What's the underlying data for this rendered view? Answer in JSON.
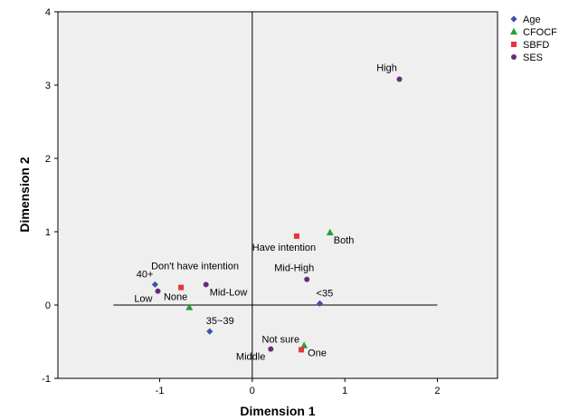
{
  "chart_data": {
    "type": "scatter",
    "title": "",
    "xlabel": "Dimension 1",
    "ylabel": "Dimension 2",
    "xlim": [
      -2.1,
      2.65
    ],
    "ylim": [
      -1,
      4
    ],
    "xticks": [
      -1,
      0,
      1,
      2
    ],
    "yticks": [
      -1,
      0,
      1,
      2,
      3,
      4
    ],
    "grid": false,
    "reference_lines": {
      "vertical_x": 0,
      "horizontal_y": 0,
      "horizontal_x_range": [
        -1.5,
        2
      ]
    },
    "legend": {
      "placement": "top-right-outside",
      "entries": [
        {
          "name": "Age",
          "marker": "diamond",
          "color": "#3f51a8"
        },
        {
          "name": "CFOCF",
          "marker": "triangle",
          "color": "#2a9d3a"
        },
        {
          "name": "SBFD",
          "marker": "square",
          "color": "#e8333a"
        },
        {
          "name": "SES",
          "marker": "circle",
          "color": "#6b2a7e"
        }
      ]
    },
    "series": [
      {
        "name": "Age",
        "marker": "diamond",
        "color": "#3f51a8",
        "points": [
          {
            "label": "40+",
            "x": -1.05,
            "y": 0.28,
            "anchor": "above-left"
          },
          {
            "label": "35~39",
            "x": -0.46,
            "y": -0.36,
            "anchor": "above-right"
          },
          {
            "label": "<35",
            "x": 0.73,
            "y": 0.02,
            "anchor": "above-right"
          }
        ]
      },
      {
        "name": "CFOCF",
        "marker": "triangle",
        "color": "#2a9d3a",
        "points": [
          {
            "label": "None",
            "x": -0.68,
            "y": -0.03,
            "anchor": "above-left"
          },
          {
            "label": "Both",
            "x": 0.84,
            "y": 0.99,
            "anchor": "below-right"
          },
          {
            "label": "One",
            "x": 0.56,
            "y": -0.55,
            "anchor": "below-right"
          }
        ]
      },
      {
        "name": "SBFD",
        "marker": "square",
        "color": "#e8333a",
        "points": [
          {
            "label": "Don't have intention",
            "x": -0.77,
            "y": 0.24,
            "anchor": "above-right-far"
          },
          {
            "label": "Have intention",
            "x": 0.48,
            "y": 0.94,
            "anchor": "below-center"
          },
          {
            "label": "Not sure",
            "x": 0.53,
            "y": -0.61,
            "anchor": "above-left"
          }
        ]
      },
      {
        "name": "SES",
        "marker": "circle",
        "color": "#6b2a7e",
        "points": [
          {
            "label": "Low",
            "x": -1.02,
            "y": 0.19,
            "anchor": "below-left"
          },
          {
            "label": "Mid-Low",
            "x": -0.5,
            "y": 0.28,
            "anchor": "below-right"
          },
          {
            "label": "Mid-High",
            "x": 0.59,
            "y": 0.35,
            "anchor": "above-center"
          },
          {
            "label": "Middle",
            "x": 0.2,
            "y": -0.6,
            "anchor": "below-left"
          },
          {
            "label": "High",
            "x": 1.59,
            "y": 3.08,
            "anchor": "above-center"
          }
        ]
      }
    ]
  }
}
